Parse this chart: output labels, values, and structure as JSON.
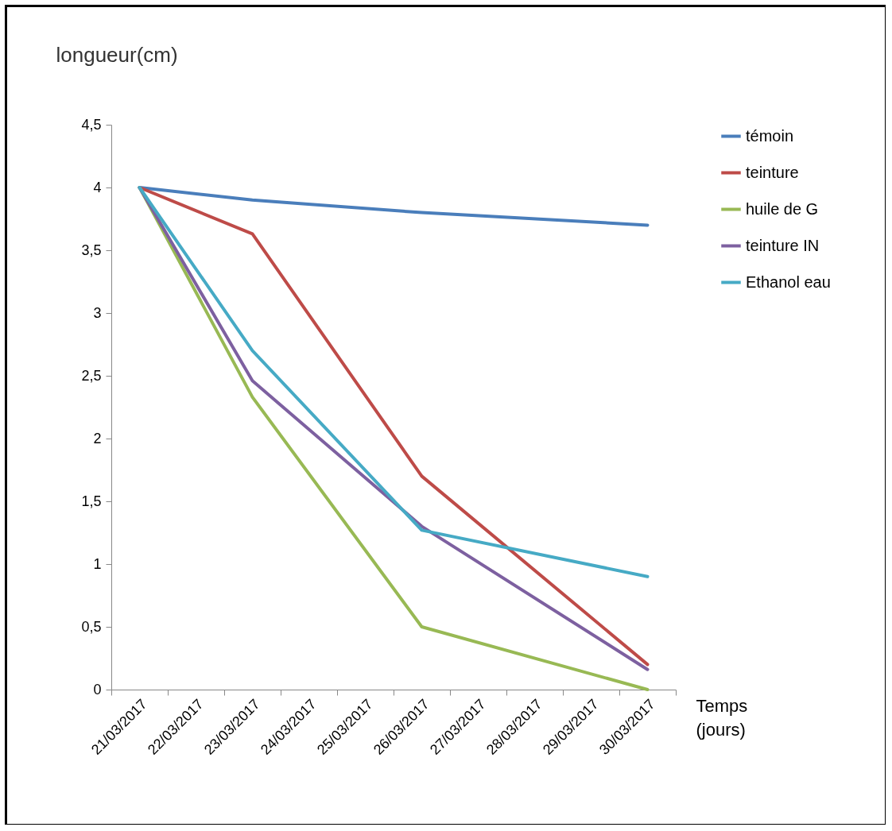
{
  "chart_data": {
    "type": "line",
    "xlabel": "Temps (jours)",
    "ylabel": "longueur(cm)",
    "categories": [
      "21/03/2017",
      "22/03/2017",
      "23/03/2017",
      "24/03/2017",
      "25/03/2017",
      "26/03/2017",
      "27/03/2017",
      "28/03/2017",
      "29/03/2017",
      "30/03/2017"
    ],
    "series": [
      {
        "name": "témoin",
        "color": "#4a7ebb",
        "values": [
          4,
          null,
          3.9,
          null,
          null,
          3.8,
          null,
          null,
          null,
          3.7
        ]
      },
      {
        "name": "teinture",
        "color": "#be4b48",
        "values": [
          4,
          null,
          3.63,
          null,
          null,
          1.7,
          null,
          null,
          null,
          0.2
        ]
      },
      {
        "name": "huile de  G",
        "color": "#98b954",
        "values": [
          4,
          null,
          2.33,
          null,
          null,
          0.5,
          null,
          null,
          null,
          0
        ]
      },
      {
        "name": "teinture IN",
        "color": "#7d60a0",
        "values": [
          4,
          null,
          2.46,
          null,
          null,
          1.3,
          null,
          null,
          null,
          0.16
        ]
      },
      {
        "name": "Ethanol eau",
        "color": "#46aac5",
        "values": [
          4,
          null,
          2.7,
          null,
          null,
          1.27,
          null,
          null,
          null,
          0.9
        ]
      }
    ],
    "ylim": [
      0,
      4.5
    ],
    "yticks": [
      0,
      {
        "value": 0.5,
        "label": "0,5"
      },
      1,
      {
        "value": 1.5,
        "label": "1,5"
      },
      2,
      {
        "value": 2.5,
        "label": "2,5"
      },
      3,
      {
        "value": 3.5,
        "label": "3,5"
      },
      4,
      {
        "value": 4.5,
        "label": "4,5"
      }
    ],
    "grid": false,
    "legend": "right",
    "line_style": "solid"
  }
}
